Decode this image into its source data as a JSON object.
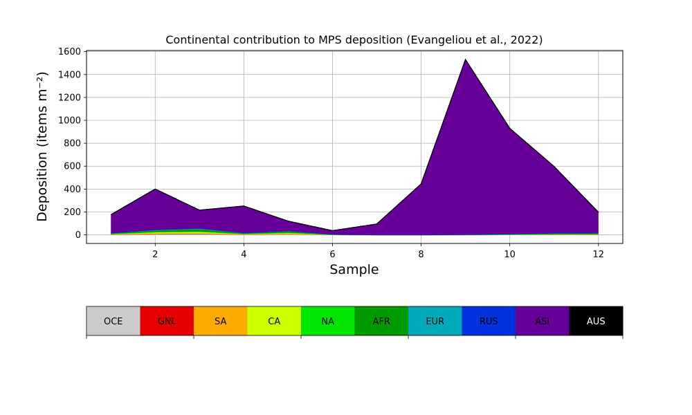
{
  "chart_data": {
    "type": "area",
    "stacked": true,
    "title": "Continental contribution to MPS deposition (Evangeliou et al., 2022)",
    "xlabel": "Sample",
    "ylabel": "Deposition (items m⁻²)",
    "xlim": [
      0.45,
      12.55
    ],
    "ylim": [
      -75,
      1610
    ],
    "xticks": [
      2,
      4,
      6,
      8,
      10,
      12
    ],
    "yticks": [
      0,
      200,
      400,
      600,
      800,
      1000,
      1200,
      1400,
      1600
    ],
    "grid": true,
    "x": [
      1,
      2,
      3,
      4,
      5,
      6,
      7,
      8,
      9,
      10,
      11,
      12
    ],
    "series": [
      {
        "name": "OCE",
        "color": "#cccccc",
        "values": [
          3,
          8,
          10,
          4,
          6,
          1,
          0,
          0,
          0,
          1,
          2,
          2
        ]
      },
      {
        "name": "GNL",
        "color": "#e60000",
        "values": [
          0,
          1,
          1,
          0,
          1,
          0,
          0,
          0,
          0,
          0,
          0,
          0
        ]
      },
      {
        "name": "SA",
        "color": "#ffaa00",
        "values": [
          1,
          3,
          3,
          1,
          2,
          0,
          0,
          0,
          0,
          0,
          0,
          0
        ]
      },
      {
        "name": "CA",
        "color": "#ccff00",
        "values": [
          3,
          9,
          10,
          3,
          6,
          1,
          0,
          0,
          0,
          1,
          2,
          2
        ]
      },
      {
        "name": "NA",
        "color": "#00e600",
        "values": [
          1,
          4,
          6,
          1,
          4,
          0,
          0,
          0,
          0,
          1,
          2,
          2
        ]
      },
      {
        "name": "AFR",
        "color": "#009900",
        "values": [
          3,
          12,
          18,
          5,
          10,
          2,
          0,
          0,
          1,
          2,
          6,
          7
        ]
      },
      {
        "name": "EUR",
        "color": "#00aabb",
        "values": [
          3,
          5,
          7,
          2,
          4,
          1,
          0,
          0,
          1,
          1,
          2,
          2
        ]
      },
      {
        "name": "RUS",
        "color": "#0033dd",
        "values": [
          1,
          2,
          2,
          1,
          1,
          0,
          0,
          0,
          1,
          1,
          1,
          1
        ]
      },
      {
        "name": "ASI",
        "color": "#660099",
        "values": [
          161,
          356,
          159,
          235,
          86,
          32,
          95,
          445,
          1528,
          923,
          582,
          182
        ]
      },
      {
        "name": "AUS",
        "color": "#000000",
        "values": [
          0,
          0,
          0,
          0,
          0,
          0,
          0,
          0,
          0,
          0,
          0,
          0
        ]
      }
    ],
    "legend_placement": "bottom"
  }
}
